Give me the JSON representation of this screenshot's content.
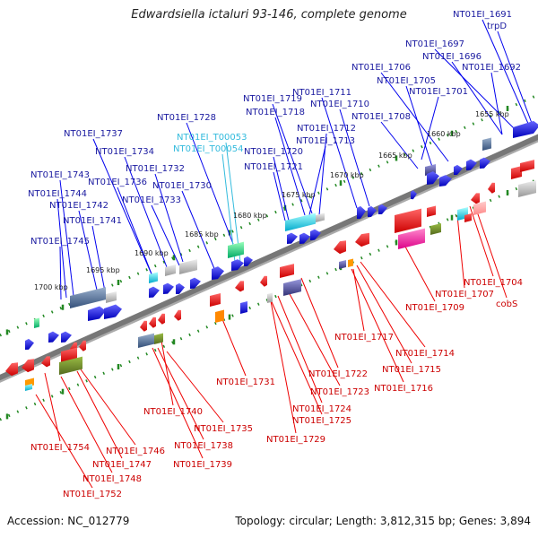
{
  "title": "Edwardsiella ictaluri 93-146, complete genome",
  "footer": {
    "accession": "Accession: NC_012779",
    "summary": "Topology: circular; Length: 3,812,315 bp; Genes: 3,894"
  },
  "colors": {
    "forward_label": "#1a1aa0",
    "forward_gene": "#0000ee",
    "reverse_label": "#cc0000",
    "reverse_gene": "#ee0000",
    "rna_label": "#33bbdd",
    "backbone": "#777777",
    "tick_marks": "#228822"
  },
  "ticks": [
    "1655 kbp",
    "1660 kbp",
    "1665 kbp",
    "1670 kbp",
    "1675 kbp",
    "1680 kbp",
    "1685 kbp",
    "1690 kbp",
    "1695 kbp",
    "1700 kbp"
  ],
  "forward_labels": [
    "NT01EI_1691",
    "trpD",
    "NT01EI_1697",
    "NT01EI_1696",
    "NT01EI_1692",
    "NT01EI_1706",
    "NT01EI_1705",
    "NT01EI_1701",
    "NT01EI_1719",
    "NT01EI_1711",
    "NT01EI_1718",
    "NT01EI_1710",
    "NT01EI_1708",
    "NT01EI_1728",
    "NT01EI_1712",
    "NT01EI_1713",
    "NT01EI_1737",
    "NT01EI_1720",
    "NT01EI_1734",
    "NT01EI_1721",
    "NT01EI_1732",
    "NT01EI_1743",
    "NT01EI_1736",
    "NT01EI_1730",
    "NT01EI_1744",
    "NT01EI_1733",
    "NT01EI_1742",
    "NT01EI_1741",
    "NT01EI_1745"
  ],
  "rna_labels": [
    "NT01EI_T00053",
    "NT01EI_T00054"
  ],
  "reverse_labels": [
    "NT01EI_1704",
    "NT01EI_1707",
    "cobS",
    "NT01EI_1709",
    "NT01EI_1717",
    "NT01EI_1714",
    "NT01EI_1715",
    "NT01EI_1722",
    "NT01EI_1716",
    "NT01EI_1731",
    "NT01EI_1723",
    "NT01EI_1724",
    "NT01EI_1725",
    "NT01EI_1740",
    "NT01EI_1735",
    "NT01EI_1729",
    "NT01EI_1738",
    "NT01EI_1739",
    "NT01EI_1754",
    "NT01EI_1746",
    "NT01EI_1747",
    "NT01EI_1748",
    "NT01EI_1752"
  ]
}
